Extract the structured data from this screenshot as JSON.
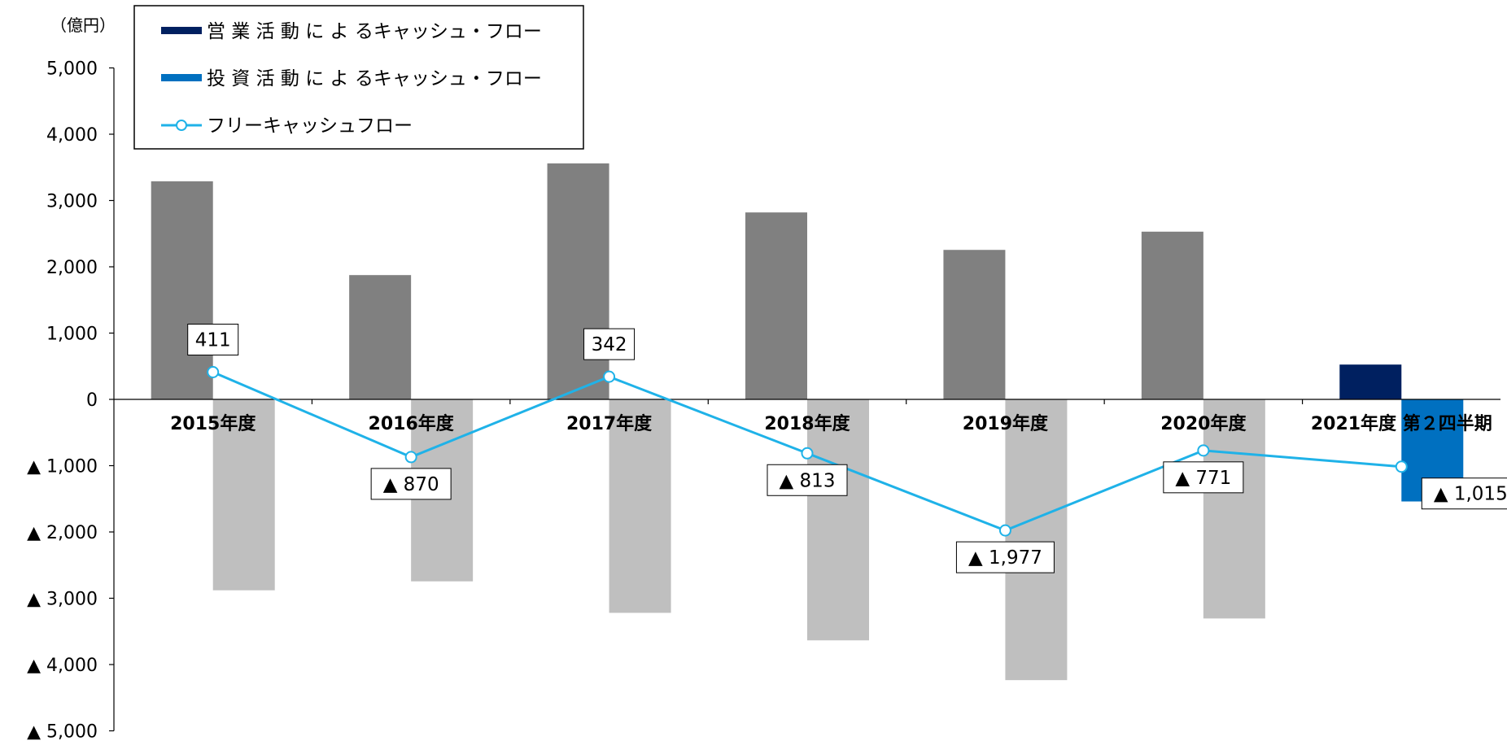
{
  "chart_data": {
    "type": "bar",
    "unit_label": "（億円）",
    "categories": [
      "2015年度",
      "2016年度",
      "2017年度",
      "2018年度",
      "2019年度",
      "2020年度",
      "2021年度 第２四半期"
    ],
    "series": [
      {
        "name": "営 業 活 動 に よ るキャッシュ・フロー",
        "kind": "bar",
        "values": [
          3290,
          1875,
          3560,
          2820,
          2255,
          2530,
          525
        ],
        "color": "#808080",
        "highlight_color": "#002060"
      },
      {
        "name": "投 資 活 動 に よ るキャッシュ・フロー",
        "kind": "bar",
        "values": [
          -2880,
          -2745,
          -3220,
          -3635,
          -4235,
          -3305,
          -1540
        ],
        "color": "#bfbfbf",
        "highlight_color": "#0070c0"
      },
      {
        "name": "フリーキャッシュフロー",
        "kind": "line",
        "values": [
          411,
          -870,
          342,
          -813,
          -1977,
          -771,
          -1015
        ],
        "color": "#1fb2e8"
      }
    ],
    "data_labels": [
      "411",
      "▲ 870",
      "342",
      "▲ 813",
      "▲ 1,977",
      "▲ 771",
      "▲ 1,015"
    ],
    "y_ticks": [
      {
        "value": 5000,
        "label": "5,000"
      },
      {
        "value": 4000,
        "label": "4,000"
      },
      {
        "value": 3000,
        "label": "3,000"
      },
      {
        "value": 2000,
        "label": "2,000"
      },
      {
        "value": 1000,
        "label": "1,000"
      },
      {
        "value": 0,
        "label": "0"
      },
      {
        "value": -1000,
        "label": "▲ 1,000"
      },
      {
        "value": -2000,
        "label": "▲ 2,000"
      },
      {
        "value": -3000,
        "label": "▲ 3,000"
      },
      {
        "value": -4000,
        "label": "▲ 4,000"
      },
      {
        "value": -5000,
        "label": "▲ 5,000"
      }
    ],
    "ylim": [
      -5000,
      5000
    ],
    "legend_position": "top-left",
    "grid": false
  }
}
